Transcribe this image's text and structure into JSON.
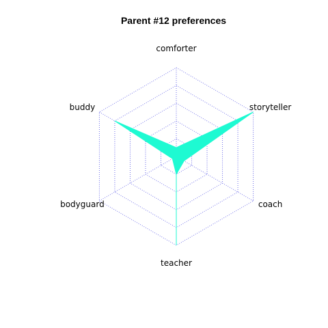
{
  "chart_data": {
    "type": "radar",
    "title": "Parent #12 preferences",
    "axes": [
      "comforter",
      "storyteller",
      "coach",
      "teacher",
      "bodyguard",
      "buddy"
    ],
    "rlim": [
      0,
      1
    ],
    "grid_levels": [
      0.2,
      0.4,
      0.6,
      0.8,
      1.0
    ],
    "grid_style": "dotted",
    "series": [
      {
        "values": [
          0.1,
          1.0,
          0.1,
          0.2,
          0.05,
          0.8
        ]
      }
    ],
    "colors": {
      "fill": "#1efad2",
      "axis_line": "#1efad2",
      "grid": "#6a6ae8"
    }
  }
}
